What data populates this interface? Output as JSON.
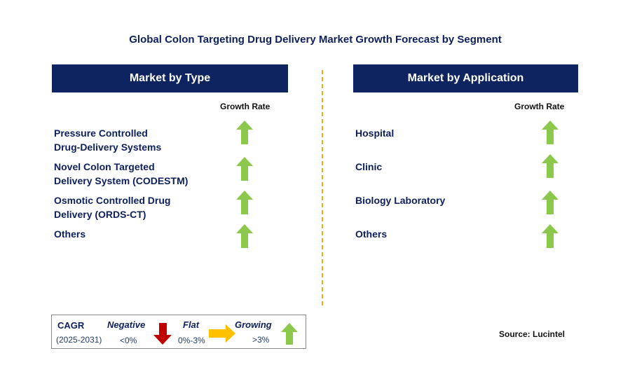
{
  "title": "Global Colon Targeting Drug Delivery Market Growth Forecast by Segment",
  "left_panel": {
    "header": "Market by Type",
    "column_label": "Growth Rate",
    "rows": [
      {
        "line1": "Pressure Controlled",
        "line2": "Drug-Delivery Systems",
        "trend": "growing"
      },
      {
        "line1": "Novel Colon Targeted",
        "line2": "Delivery System (CODESTM)",
        "trend": "growing"
      },
      {
        "line1": "Osmotic Controlled Drug",
        "line2": "Delivery (ORDS-CT)",
        "trend": "growing"
      },
      {
        "line1": "Others",
        "line2": "",
        "trend": "growing"
      }
    ]
  },
  "right_panel": {
    "header": "Market by Application",
    "column_label": "Growth Rate",
    "rows": [
      {
        "line1": "Hospital",
        "trend": "growing"
      },
      {
        "line1": "Clinic",
        "trend": "growing"
      },
      {
        "line1": "Biology Laboratory",
        "trend": "growing"
      },
      {
        "line1": "Others",
        "trend": "growing"
      }
    ]
  },
  "legend": {
    "cagr": "CAGR",
    "period": "(2025-2031)",
    "negative_label": "Negative",
    "negative_range": "<0%",
    "flat_label": "Flat",
    "flat_range": "0%-3%",
    "growing_label": "Growing",
    "growing_range": ">3%"
  },
  "source": "Source: Lucintel",
  "colors": {
    "navy": "#0e2461",
    "growing": "#8cc84b",
    "negative": "#c00000",
    "flat": "#ffc000",
    "divider": "#f5a623"
  }
}
